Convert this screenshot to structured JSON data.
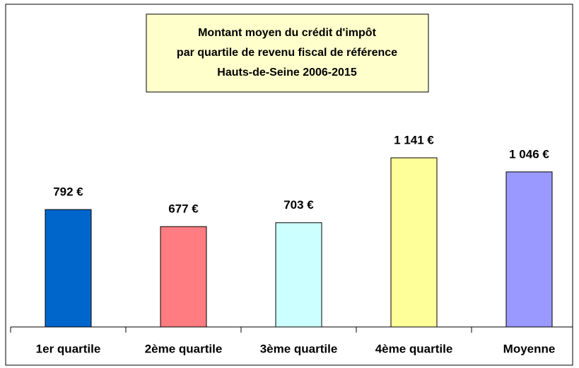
{
  "chart_data": {
    "type": "bar",
    "title": [
      "Montant moyen du crédit d'impôt",
      "par quartile de revenu fiscal de référence",
      "Hauts-de-Seine 2006-2015"
    ],
    "categories": [
      "1er quartile",
      "2ème quartile",
      "3ème quartile",
      "4ème quartile",
      "Moyenne"
    ],
    "values": [
      792,
      677,
      703,
      1141,
      1046
    ],
    "value_labels": [
      "792 €",
      "677 €",
      "703 €",
      "1 141 €",
      "1 046 €"
    ],
    "colors": [
      "#0066cc",
      "#ff7c80",
      "#ccffff",
      "#ffff99",
      "#9999ff"
    ]
  }
}
